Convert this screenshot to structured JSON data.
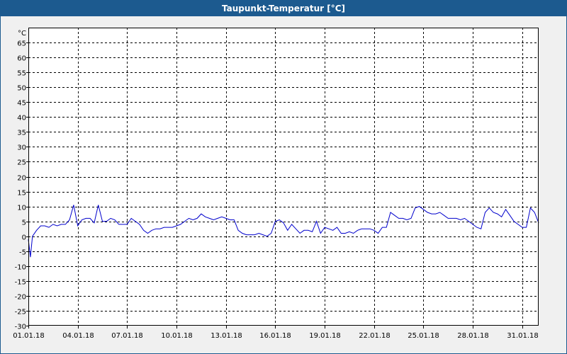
{
  "window": {
    "title": "Taupunkt-Temperatur [°C]"
  },
  "colors": {
    "titlebar": "#1c5a8f",
    "series": "#0000cc",
    "grid": "#000000",
    "plot_background": "#ffffff",
    "window_background": "#f0f0f0"
  },
  "chart_data": {
    "type": "line",
    "title": "Taupunkt-Temperatur [°C]",
    "xlabel": "",
    "ylabel": "°C",
    "y_unit_label": "°C",
    "ylim": [
      -30,
      70
    ],
    "yticks": [
      65,
      60,
      55,
      50,
      45,
      40,
      35,
      30,
      25,
      20,
      15,
      10,
      5,
      0,
      -5,
      -10,
      -15,
      -20,
      -25,
      -30
    ],
    "xlim": [
      "2018-01-01",
      "2018-02-01"
    ],
    "xticks": [
      "01.01.18",
      "04.01.18",
      "07.01.18",
      "10.01.18",
      "13.01.18",
      "16.01.18",
      "19.01.18",
      "22.01.18",
      "25.01.18",
      "28.01.18",
      "31.01.18"
    ],
    "grid": true,
    "grid_style": "dashed",
    "legend": "none",
    "series": [
      {
        "x": [
          "2018-01-01T00:00",
          "2018-01-01T03:00",
          "2018-01-01T06:00",
          "2018-01-01T12:00",
          "2018-01-01T18:00",
          "2018-01-02T00:00",
          "2018-01-02T06:00",
          "2018-01-02T12:00",
          "2018-01-02T18:00",
          "2018-01-03T00:00",
          "2018-01-03T06:00",
          "2018-01-03T12:00",
          "2018-01-03T18:00",
          "2018-01-04T00:00",
          "2018-01-04T06:00",
          "2018-01-04T12:00",
          "2018-01-04T18:00",
          "2018-01-05T00:00",
          "2018-01-05T06:00",
          "2018-01-05T12:00",
          "2018-01-05T18:00",
          "2018-01-06T00:00",
          "2018-01-06T06:00",
          "2018-01-06T12:00",
          "2018-01-06T18:00",
          "2018-01-07T00:00",
          "2018-01-07T06:00",
          "2018-01-07T12:00",
          "2018-01-07T18:00",
          "2018-01-08T00:00",
          "2018-01-08T06:00",
          "2018-01-08T12:00",
          "2018-01-08T18:00",
          "2018-01-09T00:00",
          "2018-01-09T06:00",
          "2018-01-09T12:00",
          "2018-01-09T18:00",
          "2018-01-10T00:00",
          "2018-01-10T06:00",
          "2018-01-10T12:00",
          "2018-01-10T18:00",
          "2018-01-11T00:00",
          "2018-01-11T06:00",
          "2018-01-11T12:00",
          "2018-01-11T18:00",
          "2018-01-12T00:00",
          "2018-01-12T06:00",
          "2018-01-12T12:00",
          "2018-01-12T18:00",
          "2018-01-13T00:00",
          "2018-01-13T06:00",
          "2018-01-13T12:00",
          "2018-01-13T18:00",
          "2018-01-14T00:00",
          "2018-01-14T06:00",
          "2018-01-14T12:00",
          "2018-01-14T18:00",
          "2018-01-15T00:00",
          "2018-01-15T06:00",
          "2018-01-15T12:00",
          "2018-01-15T18:00",
          "2018-01-16T00:00",
          "2018-01-16T06:00",
          "2018-01-16T12:00",
          "2018-01-16T18:00",
          "2018-01-17T00:00",
          "2018-01-17T06:00",
          "2018-01-17T12:00",
          "2018-01-17T18:00",
          "2018-01-18T00:00",
          "2018-01-18T06:00",
          "2018-01-18T12:00",
          "2018-01-18T18:00",
          "2018-01-19T00:00",
          "2018-01-19T06:00",
          "2018-01-19T12:00",
          "2018-01-19T18:00",
          "2018-01-20T00:00",
          "2018-01-20T06:00",
          "2018-01-20T12:00",
          "2018-01-20T18:00",
          "2018-01-21T00:00",
          "2018-01-21T06:00",
          "2018-01-21T12:00",
          "2018-01-21T18:00",
          "2018-01-22T00:00",
          "2018-01-22T06:00",
          "2018-01-22T12:00",
          "2018-01-22T18:00",
          "2018-01-23T00:00",
          "2018-01-23T06:00",
          "2018-01-23T12:00",
          "2018-01-23T18:00",
          "2018-01-24T00:00",
          "2018-01-24T06:00",
          "2018-01-24T12:00",
          "2018-01-24T18:00",
          "2018-01-25T00:00",
          "2018-01-25T06:00",
          "2018-01-25T12:00",
          "2018-01-25T18:00",
          "2018-01-26T00:00",
          "2018-01-26T06:00",
          "2018-01-26T12:00",
          "2018-01-26T18:00",
          "2018-01-27T00:00",
          "2018-01-27T06:00",
          "2018-01-27T12:00",
          "2018-01-27T18:00",
          "2018-01-28T00:00",
          "2018-01-28T06:00",
          "2018-01-28T12:00",
          "2018-01-28T18:00",
          "2018-01-29T00:00",
          "2018-01-29T06:00",
          "2018-01-29T12:00",
          "2018-01-29T18:00",
          "2018-01-30T00:00",
          "2018-01-30T06:00",
          "2018-01-30T12:00",
          "2018-01-30T18:00",
          "2018-01-31T00:00",
          "2018-01-31T06:00",
          "2018-01-31T12:00",
          "2018-01-31T18:00",
          "2018-02-01T00:00"
        ],
        "values": [
          -1,
          -7,
          0,
          2,
          3.5,
          3.5,
          3,
          4,
          3.5,
          4,
          4,
          5.5,
          10.5,
          3.5,
          5.5,
          6,
          6,
          4.5,
          10.5,
          5,
          5,
          6,
          5.5,
          4,
          4,
          4,
          6,
          5,
          4,
          2,
          1,
          2,
          2.5,
          2.5,
          3,
          3,
          3,
          3.5,
          4,
          5,
          6,
          5.5,
          6,
          7.5,
          6.5,
          6,
          5.5,
          6,
          6.5,
          6,
          5.5,
          5.5,
          2,
          1,
          0.5,
          0.5,
          0.5,
          1,
          0.5,
          0,
          1,
          5,
          5.5,
          4.5,
          2,
          4,
          2.5,
          1,
          2,
          2,
          1.5,
          5,
          1,
          3,
          2.5,
          2,
          3,
          1,
          1,
          1.5,
          1,
          2,
          2.5,
          2.5,
          2.5,
          2,
          1,
          3,
          3,
          8,
          7,
          6,
          6,
          5.5,
          6,
          9.5,
          10,
          9,
          8,
          7.5,
          7.5,
          8,
          7,
          6,
          6,
          6,
          5.5,
          6,
          5,
          4,
          3,
          2.5,
          8,
          9.5,
          8,
          7.5,
          6.5,
          9,
          7,
          5,
          4,
          3,
          3,
          9.5,
          8,
          4.5
        ]
      }
    ]
  }
}
